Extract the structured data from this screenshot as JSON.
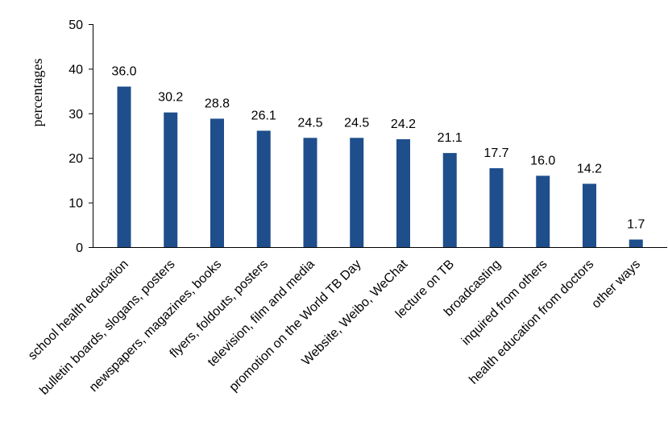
{
  "chart_data": {
    "type": "bar",
    "categories": [
      "school health education",
      "bulletin boards, slogans, posters",
      "newspapers, magazines, books",
      "flyers, foldouts, posters",
      "television, film and media",
      "promotion on the World TB Day",
      "Website, Weibo, WeChat",
      "lecture on TB",
      "broadcasting",
      "inquired from others",
      "health education from doctors",
      "other ways"
    ],
    "values": [
      36.0,
      30.2,
      28.8,
      26.1,
      24.5,
      24.5,
      24.2,
      21.1,
      17.7,
      16.0,
      14.2,
      1.7
    ],
    "data_labels": [
      "36.0",
      "30.2",
      "28.8",
      "26.1",
      "24.5",
      "24.5",
      "24.2",
      "21.1",
      "17.7",
      "16.0",
      "14.2",
      "1.7"
    ],
    "title": "",
    "xlabel": "",
    "ylabel": "percentages",
    "ylim": [
      0,
      50
    ],
    "yticks": [
      0,
      10,
      20,
      30,
      40,
      50
    ],
    "ytick_labels": [
      "0",
      "10",
      "20",
      "30",
      "40",
      "50"
    ],
    "grid": false,
    "legend": "none",
    "bar_color": "#1f4e8c"
  }
}
